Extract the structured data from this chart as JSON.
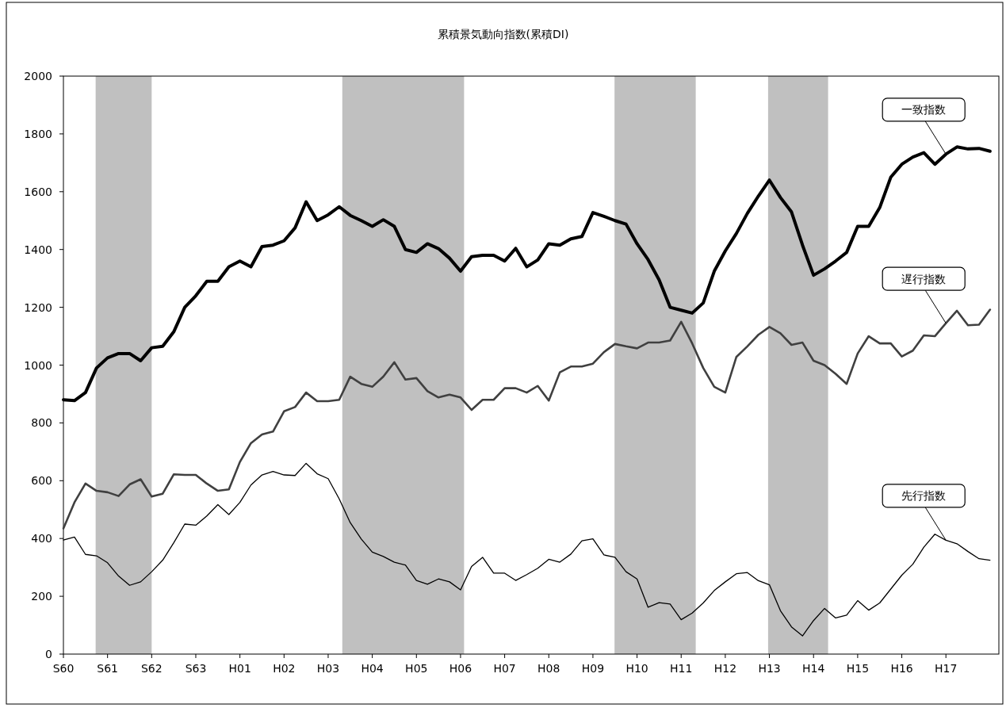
{
  "chart_data": {
    "type": "line",
    "title": "累積景気動向指数(累積DI)",
    "categories": [
      "S60",
      null,
      null,
      null,
      "S61",
      null,
      null,
      null,
      "S62",
      null,
      null,
      null,
      "S63",
      null,
      null,
      null,
      "H01",
      null,
      null,
      null,
      "H02",
      null,
      null,
      null,
      "H03",
      null,
      null,
      null,
      "H04",
      null,
      null,
      null,
      "H05",
      null,
      null,
      null,
      "H06",
      null,
      null,
      null,
      "H07",
      null,
      null,
      null,
      "H08",
      null,
      null,
      null,
      "H09",
      null,
      null,
      null,
      "H10",
      null,
      null,
      null,
      "H11",
      null,
      null,
      null,
      "H12",
      null,
      null,
      null,
      "H13",
      null,
      null,
      null,
      "H14",
      null,
      null,
      null,
      "H15",
      null,
      null,
      null,
      "H16",
      null,
      null,
      null,
      "H17",
      null,
      null,
      null,
      null
    ],
    "ylim": [
      0,
      2000
    ],
    "yticks": [
      0,
      200,
      400,
      600,
      800,
      1000,
      1200,
      1400,
      1600,
      1800,
      2000
    ],
    "series": [
      {
        "name": "一致指数",
        "color": "#000000",
        "values": [
          880,
          877,
          905,
          990,
          1025,
          1040,
          1040,
          1015,
          1060,
          1065,
          1115,
          1200,
          1240,
          1290,
          1290,
          1340,
          1360,
          1340,
          1410,
          1415,
          1430,
          1475,
          1565,
          1500,
          1520,
          1548,
          1518,
          1500,
          1480,
          1503,
          1480,
          1400,
          1390,
          1420,
          1403,
          1370,
          1325,
          1375,
          1380,
          1380,
          1360,
          1404,
          1340,
          1364,
          1420,
          1415,
          1437,
          1445,
          1528,
          1515,
          1500,
          1488,
          1420,
          1365,
          1295,
          1200,
          1190,
          1180,
          1215,
          1325,
          1395,
          1455,
          1525,
          1585,
          1640,
          1580,
          1530,
          1415,
          1311,
          1333,
          1360,
          1390,
          1480,
          1480,
          1545,
          1650,
          1695,
          1720,
          1735,
          1695,
          1730,
          1755,
          1748,
          1750,
          1740
        ]
      },
      {
        "name": "遅行指数",
        "color": "#404040",
        "values": [
          435,
          525,
          590,
          565,
          560,
          547,
          587,
          605,
          545,
          555,
          622,
          620,
          620,
          590,
          565,
          570,
          665,
          730,
          760,
          770,
          840,
          855,
          905,
          875,
          875,
          880,
          960,
          935,
          925,
          960,
          1010,
          950,
          955,
          910,
          888,
          898,
          888,
          845,
          880,
          880,
          920,
          920,
          905,
          928,
          877,
          975,
          995,
          995,
          1005,
          1045,
          1073,
          1065,
          1058,
          1078,
          1078,
          1085,
          1150,
          1075,
          990,
          925,
          905,
          1028,
          1065,
          1105,
          1132,
          1110,
          1070,
          1078,
          1015,
          1000,
          970,
          935,
          1040,
          1100,
          1075,
          1075,
          1030,
          1050,
          1103,
          1100,
          1145,
          1188,
          1138,
          1140,
          1192
        ]
      },
      {
        "name": "先行指数",
        "color": "#000000",
        "values": [
          395,
          405,
          345,
          340,
          316,
          270,
          238,
          250,
          285,
          325,
          385,
          450,
          446,
          478,
          517,
          483,
          525,
          585,
          620,
          632,
          620,
          618,
          660,
          624,
          607,
          537,
          455,
          398,
          353,
          338,
          318,
          308,
          255,
          242,
          260,
          250,
          222,
          303,
          335,
          280,
          280,
          255,
          275,
          297,
          328,
          318,
          346,
          392,
          399,
          343,
          335,
          285,
          260,
          162,
          178,
          173,
          119,
          142,
          177,
          220,
          250,
          278,
          282,
          254,
          240,
          150,
          94,
          63,
          116,
          158,
          125,
          135,
          185,
          152,
          177,
          225,
          273,
          311,
          370,
          415,
          394,
          382,
          355,
          330,
          325
        ]
      }
    ]
  }
}
